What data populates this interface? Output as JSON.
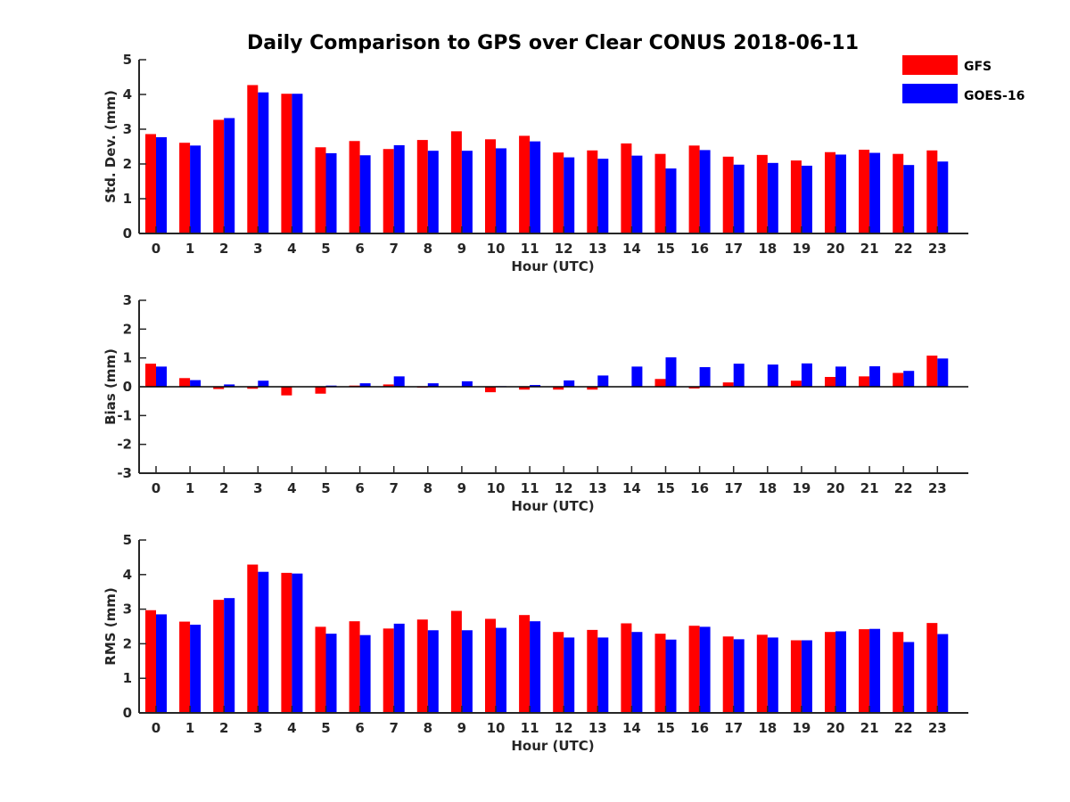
{
  "title": "Daily Comparison to GPS over Clear CONUS 2018-06-11",
  "legend": [
    {
      "name": "GFS",
      "color": "#ff0000"
    },
    {
      "name": "GOES-16",
      "color": "#0000ff"
    }
  ],
  "chart_data": [
    {
      "type": "bar",
      "id": "stddev",
      "categories": [
        "0",
        "1",
        "2",
        "3",
        "4",
        "5",
        "6",
        "7",
        "8",
        "9",
        "10",
        "11",
        "12",
        "13",
        "14",
        "15",
        "16",
        "17",
        "18",
        "19",
        "20",
        "21",
        "22",
        "23"
      ],
      "series": [
        {
          "name": "GFS",
          "values": [
            2.86,
            2.61,
            3.27,
            4.27,
            4.02,
            2.48,
            2.66,
            2.43,
            2.69,
            2.94,
            2.71,
            2.81,
            2.33,
            2.39,
            2.59,
            2.29,
            2.53,
            2.21,
            2.26,
            2.1,
            2.34,
            2.41,
            2.29,
            2.39
          ]
        },
        {
          "name": "GOES-16",
          "values": [
            2.77,
            2.53,
            3.32,
            4.06,
            4.02,
            2.31,
            2.25,
            2.54,
            2.38,
            2.38,
            2.45,
            2.65,
            2.19,
            2.15,
            2.24,
            1.87,
            2.4,
            1.98,
            2.03,
            1.95,
            2.27,
            2.32,
            1.97,
            2.07
          ]
        }
      ],
      "ylabel": "Std. Dev. (mm)",
      "xlabel": "Hour (UTC)",
      "ylim": [
        0,
        5
      ],
      "yticks": [
        0,
        1,
        2,
        3,
        4,
        5
      ]
    },
    {
      "type": "bar",
      "id": "bias",
      "categories": [
        "0",
        "1",
        "2",
        "3",
        "4",
        "5",
        "6",
        "7",
        "8",
        "9",
        "10",
        "11",
        "12",
        "13",
        "14",
        "15",
        "16",
        "17",
        "18",
        "19",
        "20",
        "21",
        "22",
        "23"
      ],
      "series": [
        {
          "name": "GFS",
          "values": [
            0.8,
            0.3,
            -0.08,
            -0.07,
            -0.3,
            -0.24,
            0.04,
            0.08,
            -0.03,
            0.0,
            -0.19,
            -0.1,
            -0.1,
            -0.1,
            0.0,
            0.27,
            -0.06,
            0.15,
            0.0,
            0.21,
            0.34,
            0.36,
            0.48,
            1.08
          ]
        },
        {
          "name": "GOES-16",
          "values": [
            0.7,
            0.23,
            0.08,
            0.21,
            0.0,
            0.04,
            0.12,
            0.36,
            0.12,
            0.19,
            0.02,
            0.06,
            0.22,
            0.39,
            0.7,
            1.02,
            0.68,
            0.8,
            0.77,
            0.81,
            0.7,
            0.71,
            0.55,
            0.98
          ]
        }
      ],
      "ylabel": "Bias (mm)",
      "xlabel": "Hour (UTC)",
      "ylim": [
        -3,
        3
      ],
      "yticks": [
        -3,
        -2,
        -1,
        0,
        1,
        2,
        3
      ]
    },
    {
      "type": "bar",
      "id": "rms",
      "categories": [
        "0",
        "1",
        "2",
        "3",
        "4",
        "5",
        "6",
        "7",
        "8",
        "9",
        "10",
        "11",
        "12",
        "13",
        "14",
        "15",
        "16",
        "17",
        "18",
        "19",
        "20",
        "21",
        "22",
        "23"
      ],
      "series": [
        {
          "name": "GFS",
          "values": [
            2.97,
            2.64,
            3.27,
            4.29,
            4.05,
            2.49,
            2.65,
            2.44,
            2.7,
            2.95,
            2.72,
            2.83,
            2.34,
            2.4,
            2.59,
            2.29,
            2.52,
            2.21,
            2.26,
            2.1,
            2.34,
            2.42,
            2.34,
            2.6
          ]
        },
        {
          "name": "GOES-16",
          "values": [
            2.85,
            2.55,
            3.32,
            4.08,
            4.03,
            2.29,
            2.25,
            2.58,
            2.39,
            2.39,
            2.46,
            2.65,
            2.18,
            2.18,
            2.34,
            2.12,
            2.49,
            2.13,
            2.18,
            2.1,
            2.36,
            2.43,
            2.05,
            2.28
          ]
        }
      ],
      "ylabel": "RMS (mm)",
      "xlabel": "Hour (UTC)",
      "ylim": [
        0,
        5
      ],
      "yticks": [
        0,
        1,
        2,
        3,
        4,
        5
      ]
    }
  ]
}
